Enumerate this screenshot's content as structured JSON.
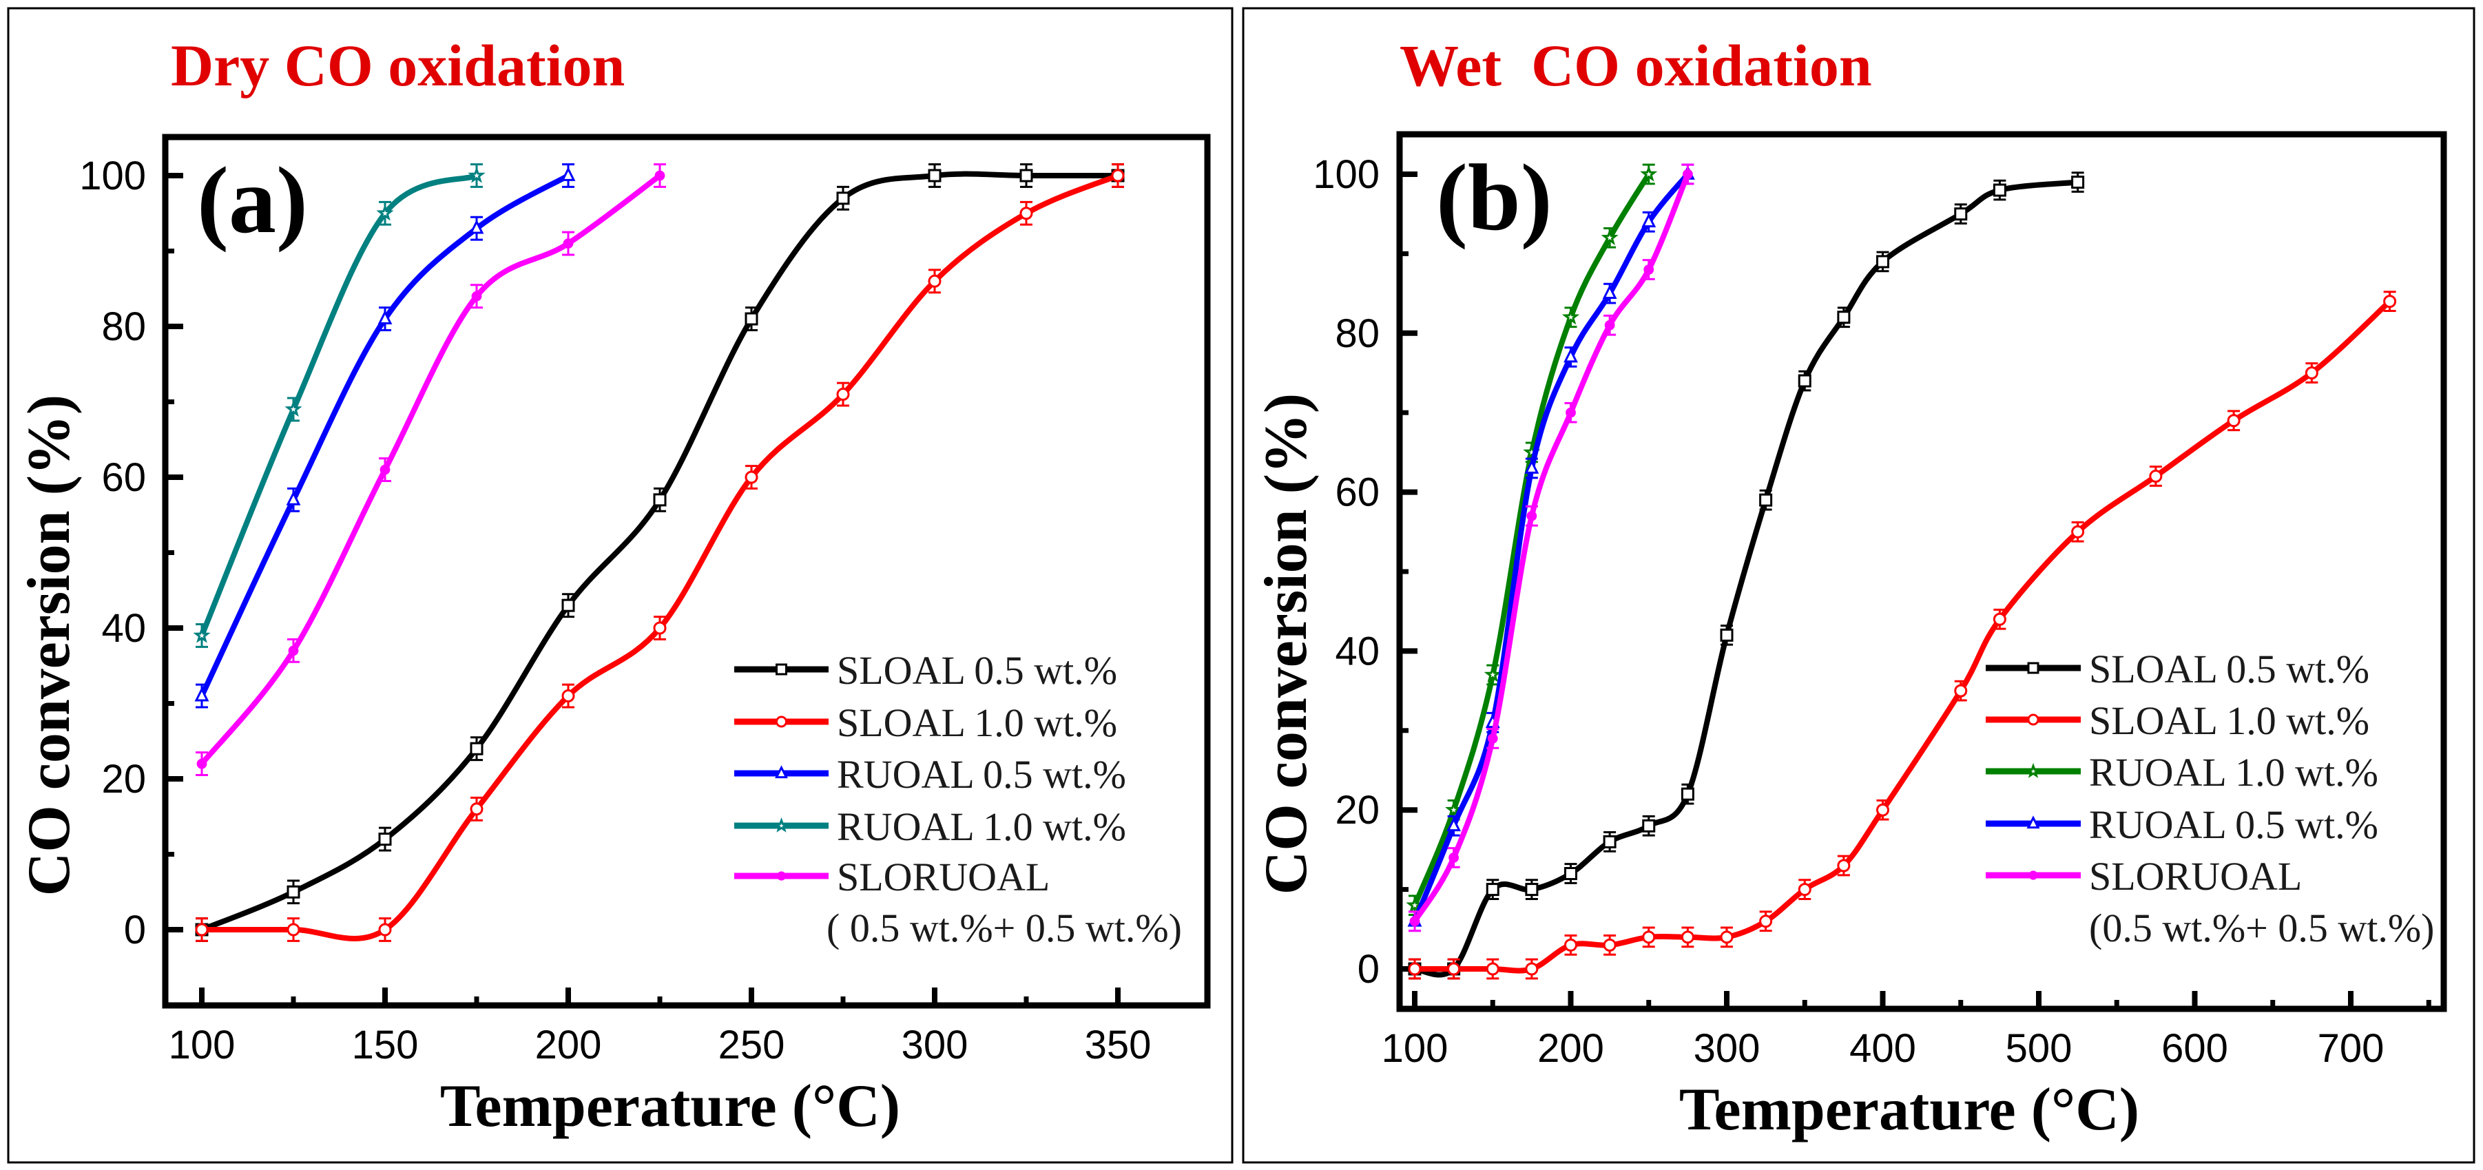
{
  "chart_data": [
    {
      "type": "line",
      "title": "Dry CO oxidation",
      "title_color": "#e00000",
      "panel_label": "(a)",
      "xlabel": "Temperature (°C)",
      "ylabel": "CO conversion (%)",
      "xlim": [
        90,
        373
      ],
      "ylim": [
        -10,
        105
      ],
      "xticks": [
        100,
        150,
        200,
        250,
        300,
        350
      ],
      "xminor": [
        125,
        175,
        225,
        275,
        325
      ],
      "yticks": [
        0,
        20,
        40,
        60,
        80,
        100
      ],
      "yminor": [
        10,
        30,
        50,
        70,
        90
      ],
      "grid": false,
      "legend_position": "bottom-right",
      "series": [
        {
          "name": "SLOAL 0.5 wt.%",
          "color": "#000000",
          "marker": "square",
          "yerr": 1.5,
          "x": [
            100,
            125,
            150,
            175,
            200,
            225,
            250,
            275,
            300,
            325,
            350
          ],
          "y": [
            0,
            5,
            12,
            24,
            43,
            57,
            81,
            97,
            100,
            100,
            100
          ]
        },
        {
          "name": "SLOAL 1.0 wt.%",
          "color": "#ff0000",
          "marker": "circle",
          "yerr": 1.5,
          "x": [
            100,
            125,
            150,
            175,
            200,
            225,
            250,
            275,
            300,
            325,
            350
          ],
          "y": [
            0,
            0,
            0,
            16,
            31,
            40,
            60,
            71,
            86,
            95,
            100
          ]
        },
        {
          "name": "RUOAL 0.5 wt.%",
          "color": "#0000ff",
          "marker": "triangle",
          "yerr": 1.5,
          "x": [
            100,
            125,
            150,
            175,
            200
          ],
          "y": [
            31,
            57,
            81,
            93,
            100
          ]
        },
        {
          "name": "RUOAL 1.0 wt.%",
          "color": "#008080",
          "marker": "star",
          "yerr": 1.5,
          "x": [
            100,
            125,
            150,
            175
          ],
          "y": [
            39,
            69,
            95,
            100
          ]
        },
        {
          "name": "SLORUOAL",
          "sublabel": "( 0.5 wt.%+ 0.5 wt.%)",
          "color": "#ff00ff",
          "marker": "filled",
          "yerr": 1.5,
          "x": [
            100,
            125,
            150,
            175,
            200,
            225
          ],
          "y": [
            22,
            37,
            61,
            84,
            91,
            100
          ]
        }
      ]
    },
    {
      "type": "line",
      "title": "Wet  CO oxidation",
      "title_color": "#e00000",
      "panel_label": "(b)",
      "xlabel": "Temperature (°C)",
      "ylabel": "CO conversion (%)",
      "xlim": [
        90,
        760
      ],
      "ylim": [
        -5,
        105
      ],
      "xticks": [
        100,
        200,
        300,
        400,
        500,
        600,
        700
      ],
      "xminor": [
        150,
        250,
        350,
        450,
        550,
        650,
        750
      ],
      "yticks": [
        0,
        20,
        40,
        60,
        80,
        100
      ],
      "yminor": [
        10,
        30,
        50,
        70,
        90
      ],
      "grid": false,
      "legend_position": "bottom-right",
      "series": [
        {
          "name": "SLOAL 0.5 wt.%",
          "color": "#000000",
          "marker": "square",
          "yerr": 1.2,
          "x": [
            100,
            125,
            150,
            175,
            200,
            225,
            250,
            275,
            300,
            325,
            350,
            375,
            400,
            450,
            475,
            525
          ],
          "y": [
            0,
            0,
            10,
            10,
            12,
            16,
            18,
            22,
            42,
            59,
            74,
            82,
            89,
            95,
            98,
            99
          ]
        },
        {
          "name": "SLOAL 1.0 wt.%",
          "color": "#ff0000",
          "marker": "circle",
          "yerr": 1.2,
          "x": [
            100,
            125,
            150,
            175,
            200,
            225,
            250,
            275,
            300,
            325,
            350,
            375,
            400,
            450,
            475,
            525,
            575,
            625,
            675,
            725
          ],
          "y": [
            0,
            0,
            0,
            0,
            3,
            3,
            4,
            4,
            4,
            6,
            10,
            13,
            20,
            35,
            44,
            55,
            62,
            69,
            75,
            84
          ]
        },
        {
          "name": "RUOAL 1.0 wt.%",
          "color": "#008000",
          "marker": "star",
          "yerr": 1.2,
          "x": [
            100,
            125,
            150,
            175,
            200,
            225,
            250
          ],
          "y": [
            8,
            20,
            37,
            65,
            82,
            92,
            100
          ]
        },
        {
          "name": "RUOAL 0.5 wt.%",
          "color": "#0000ff",
          "marker": "triangle",
          "yerr": 1.2,
          "x": [
            100,
            125,
            150,
            175,
            200,
            225,
            250,
            275
          ],
          "y": [
            6,
            18,
            31,
            63,
            77,
            85,
            94,
            100
          ]
        },
        {
          "name": "SLORUOAL",
          "sublabel": "(0.5 wt.%+ 0.5 wt.%)",
          "color": "#ff00ff",
          "marker": "filled",
          "yerr": 1.2,
          "x": [
            100,
            125,
            150,
            175,
            200,
            225,
            250,
            275
          ],
          "y": [
            6,
            14,
            29,
            57,
            70,
            81,
            88,
            100
          ]
        }
      ]
    }
  ]
}
